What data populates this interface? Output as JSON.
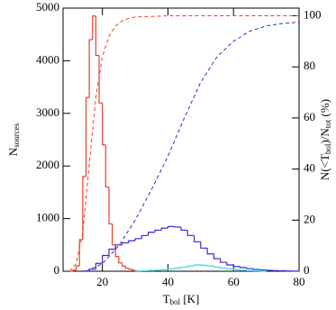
{
  "chart_data": {
    "type": "histogram",
    "xlabel": [
      {
        "t": "T"
      },
      {
        "t": "bol",
        "sub": true
      },
      {
        "t": " [K]"
      }
    ],
    "ylabel": [
      {
        "t": "N"
      },
      {
        "t": "sources",
        "sub": true
      }
    ],
    "y2label": [
      {
        "t": "N(<T"
      },
      {
        "t": "bol",
        "sub": true
      },
      {
        "t": ")/N"
      },
      {
        "t": "tot",
        "sub": true
      },
      {
        "t": " (%)"
      }
    ],
    "xlim": [
      8,
      80
    ],
    "xticks": [
      20,
      40,
      60,
      80
    ],
    "ylim": [
      0,
      5000
    ],
    "yticks": [
      0,
      1000,
      2000,
      3000,
      4000,
      5000
    ],
    "y2lim": [
      0,
      103
    ],
    "y2ticks": [
      0,
      20,
      40,
      60,
      80,
      100
    ],
    "hist": [
      {
        "color": "#e8412c",
        "bins": [
          10,
          11,
          12,
          13,
          14,
          15,
          16,
          17,
          18,
          19,
          20,
          21,
          22,
          23,
          24,
          25,
          26,
          27,
          28,
          29,
          30,
          31
        ],
        "counts": [
          0,
          20,
          100,
          600,
          1800,
          3300,
          4400,
          4850,
          4100,
          3200,
          2400,
          1600,
          900,
          500,
          280,
          160,
          100,
          60,
          40,
          20,
          10
        ]
      },
      {
        "color": "#3a2ad0",
        "bins": [
          14,
          16,
          18,
          20,
          22,
          24,
          26,
          28,
          30,
          32,
          34,
          36,
          38,
          40,
          42,
          44,
          46,
          48,
          50,
          52,
          54,
          56,
          58,
          60,
          62,
          64,
          66,
          68,
          70,
          72,
          74,
          76,
          78,
          80
        ],
        "counts": [
          5,
          40,
          150,
          300,
          420,
          500,
          540,
          580,
          620,
          680,
          740,
          780,
          820,
          850,
          840,
          780,
          680,
          560,
          440,
          330,
          240,
          170,
          120,
          90,
          70,
          50,
          35,
          25,
          18,
          12,
          8,
          5,
          3
        ]
      },
      {
        "color": "#3fd8e0",
        "bins": [
          30,
          32,
          34,
          36,
          38,
          40,
          42,
          44,
          46,
          48,
          50,
          52,
          54,
          56,
          58,
          60,
          62,
          64,
          66,
          68,
          70
        ],
        "counts": [
          5,
          10,
          15,
          20,
          30,
          45,
          60,
          80,
          100,
          120,
          115,
          100,
          80,
          60,
          45,
          30,
          20,
          12,
          8,
          4
        ]
      }
    ],
    "cumulative": [
      {
        "color": "#e8412c",
        "axis": "y2",
        "x": [
          10,
          12,
          14,
          16,
          18,
          20,
          22,
          24,
          26,
          28,
          30,
          40,
          60,
          80
        ],
        "values": [
          0,
          3,
          15,
          42,
          68,
          84,
          92,
          96,
          98,
          99,
          99.5,
          100,
          100,
          100
        ]
      },
      {
        "color": "#3a2ad0",
        "axis": "y2",
        "x": [
          15,
          20,
          25,
          30,
          35,
          40,
          45,
          50,
          55,
          60,
          65,
          70,
          75,
          80
        ],
        "values": [
          0,
          3,
          10,
          20,
          32,
          45,
          60,
          74,
          84,
          90,
          94,
          96,
          97,
          97.5
        ]
      }
    ]
  }
}
